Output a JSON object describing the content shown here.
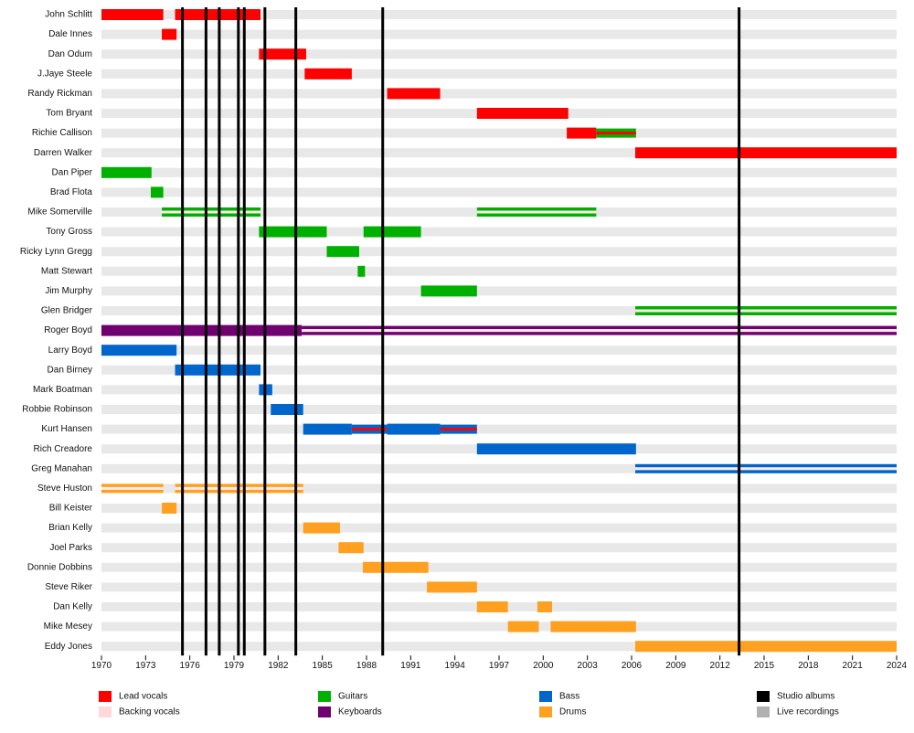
{
  "chart_data": {
    "type": "timeline",
    "xlim": [
      1970,
      2024
    ],
    "xticks": [
      1970,
      1973,
      1976,
      1979,
      1982,
      1985,
      1988,
      1991,
      1994,
      1997,
      2000,
      2003,
      2006,
      2009,
      2012,
      2015,
      2018,
      2021,
      2024
    ],
    "roles": [
      {
        "name": "Lead vocals",
        "color": "#ff0000"
      },
      {
        "name": "Backing vocals",
        "color": "#ffd8d8"
      },
      {
        "name": "Guitars",
        "color": "#00b000"
      },
      {
        "name": "Keyboards",
        "color": "#700070"
      },
      {
        "name": "Bass",
        "color": "#0066cc"
      },
      {
        "name": "Drums",
        "color": "#ffa020"
      }
    ],
    "lines": [
      {
        "name": "Studio albums",
        "color": "#000000",
        "values": [
          1975.5,
          1977.1,
          1978.0,
          1979.3,
          1979.7,
          1981.1,
          1983.2,
          1989.1,
          2013.3
        ]
      },
      {
        "name": "Live recordings",
        "color": "#b0b0b0",
        "values": []
      }
    ],
    "members": [
      {
        "name": "John Schlitt",
        "segments": [
          {
            "role": 0,
            "start": 1970,
            "end": 1974.2
          },
          {
            "role": 0,
            "start": 1975.0,
            "end": 1980.8
          }
        ]
      },
      {
        "name": "Dale Innes",
        "segments": [
          {
            "role": 0,
            "start": 1974.1,
            "end": 1975.1
          }
        ]
      },
      {
        "name": "Dan Odum",
        "segments": [
          {
            "role": 0,
            "start": 1980.7,
            "end": 1983.9
          }
        ]
      },
      {
        "name": "J.Jaye Steele",
        "segments": [
          {
            "role": 0,
            "start": 1983.8,
            "end": 1987.0
          }
        ]
      },
      {
        "name": "Randy Rickman",
        "segments": [
          {
            "role": 0,
            "start": 1989.4,
            "end": 1993.0
          }
        ]
      },
      {
        "name": "Tom Bryant",
        "segments": [
          {
            "role": 0,
            "start": 1995.5,
            "end": 2001.7
          }
        ]
      },
      {
        "name": "Richie Callison",
        "segments": [
          {
            "role": 0,
            "start": 2001.6,
            "end": 2003.6
          },
          {
            "role": 2,
            "start": 2003.6,
            "end": 2006.3,
            "second": 0
          }
        ]
      },
      {
        "name": "Darren Walker",
        "segments": [
          {
            "role": 0,
            "start": 2006.25,
            "end": 2024
          }
        ]
      },
      {
        "name": "Dan Piper",
        "segments": [
          {
            "role": 2,
            "start": 1970,
            "end": 1973.4
          }
        ]
      },
      {
        "name": "Brad Flota",
        "segments": [
          {
            "role": 2,
            "start": 1973.35,
            "end": 1974.2
          }
        ]
      },
      {
        "name": "Mike Somerville",
        "segments": [
          {
            "role": 2,
            "start": 1974.1,
            "end": 1980.8,
            "second": 1
          },
          {
            "role": 2,
            "start": 1995.5,
            "end": 2003.6,
            "second": 1
          }
        ]
      },
      {
        "name": "Tony Gross",
        "segments": [
          {
            "role": 2,
            "start": 1980.7,
            "end": 1985.3
          },
          {
            "role": 2,
            "start": 1987.8,
            "end": 1991.7
          }
        ]
      },
      {
        "name": "Ricky Lynn Gregg",
        "segments": [
          {
            "role": 2,
            "start": 1985.3,
            "end": 1987.5
          }
        ]
      },
      {
        "name": "Matt Stewart",
        "segments": [
          {
            "role": 2,
            "start": 1987.4,
            "end": 1987.9
          }
        ]
      },
      {
        "name": "Jim Murphy",
        "segments": [
          {
            "role": 2,
            "start": 1991.7,
            "end": 1995.5
          }
        ]
      },
      {
        "name": "Glen Bridger",
        "segments": [
          {
            "role": 2,
            "start": 2006.25,
            "end": 2024,
            "second": 1
          }
        ]
      },
      {
        "name": "Roger Boyd",
        "segments": [
          {
            "role": 3,
            "start": 1970,
            "end": 1983.6
          },
          {
            "role": 3,
            "start": 1983.6,
            "end": 2024,
            "second": 1
          }
        ]
      },
      {
        "name": "Larry Boyd",
        "segments": [
          {
            "role": 4,
            "start": 1970,
            "end": 1975.1
          }
        ]
      },
      {
        "name": "Dan Birney",
        "segments": [
          {
            "role": 4,
            "start": 1975.0,
            "end": 1980.8
          }
        ]
      },
      {
        "name": "Mark Boatman",
        "segments": [
          {
            "role": 4,
            "start": 1980.7,
            "end": 1981.6
          }
        ]
      },
      {
        "name": "Robbie Robinson",
        "segments": [
          {
            "role": 4,
            "start": 1981.5,
            "end": 1983.7
          }
        ]
      },
      {
        "name": "Kurt Hansen",
        "segments": [
          {
            "role": 4,
            "start": 1983.7,
            "end": 1987.0
          },
          {
            "role": 4,
            "start": 1987.0,
            "end": 1989.4,
            "second": 0
          },
          {
            "role": 4,
            "start": 1989.4,
            "end": 1993.0
          },
          {
            "role": 4,
            "start": 1993.0,
            "end": 1995.5,
            "second": 0
          }
        ]
      },
      {
        "name": "Rich Creadore",
        "segments": [
          {
            "role": 4,
            "start": 1995.5,
            "end": 2006.3
          }
        ]
      },
      {
        "name": "Greg Manahan",
        "segments": [
          {
            "role": 4,
            "start": 2006.25,
            "end": 2024,
            "second": 1
          }
        ]
      },
      {
        "name": "Steve Huston",
        "segments": [
          {
            "role": 5,
            "start": 1970,
            "end": 1974.2,
            "second": 1
          },
          {
            "role": 5,
            "start": 1975.0,
            "end": 1983.7,
            "second": 1
          }
        ]
      },
      {
        "name": "Bill Keister",
        "segments": [
          {
            "role": 5,
            "start": 1974.1,
            "end": 1975.1
          }
        ]
      },
      {
        "name": "Brian Kelly",
        "segments": [
          {
            "role": 5,
            "start": 1983.7,
            "end": 1986.2
          }
        ]
      },
      {
        "name": "Joel Parks",
        "segments": [
          {
            "role": 5,
            "start": 1986.1,
            "end": 1987.8
          }
        ]
      },
      {
        "name": "Donnie Dobbins",
        "segments": [
          {
            "role": 5,
            "start": 1987.75,
            "end": 1992.2
          }
        ]
      },
      {
        "name": "Steve Riker",
        "segments": [
          {
            "role": 5,
            "start": 1992.1,
            "end": 1995.5
          }
        ]
      },
      {
        "name": "Dan Kelly",
        "segments": [
          {
            "role": 5,
            "start": 1995.5,
            "end": 1997.6
          },
          {
            "role": 5,
            "start": 1999.6,
            "end": 2000.6
          }
        ]
      },
      {
        "name": "Mike Mesey",
        "segments": [
          {
            "role": 5,
            "start": 1997.6,
            "end": 1999.7
          },
          {
            "role": 5,
            "start": 2000.5,
            "end": 2006.3
          }
        ]
      },
      {
        "name": "Eddy Jones",
        "segments": [
          {
            "role": 5,
            "start": 2006.25,
            "end": 2024
          }
        ]
      }
    ]
  }
}
